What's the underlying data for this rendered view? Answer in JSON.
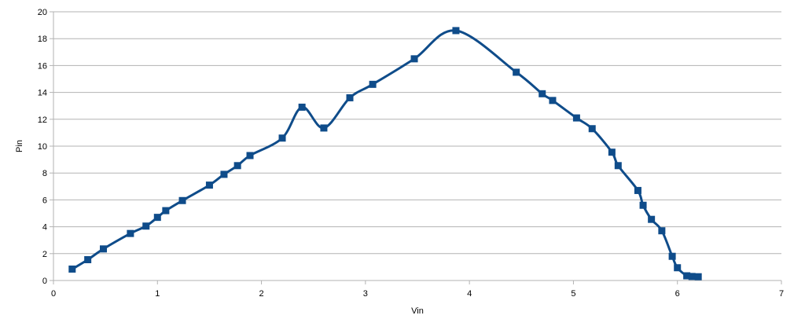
{
  "chart_data": {
    "type": "scatter",
    "xlabel": "Vin",
    "ylabel": "Pin",
    "xlim": [
      0,
      7
    ],
    "ylim": [
      0,
      20
    ],
    "xticks": [
      "0",
      "1",
      "2",
      "3",
      "4",
      "5",
      "6",
      "7"
    ],
    "yticks": [
      "0",
      "2",
      "4",
      "6",
      "8",
      "10",
      "12",
      "14",
      "16",
      "18",
      "20"
    ],
    "grid": true,
    "legend": "none",
    "series": [
      {
        "color": "#0f4c8a",
        "marker": "square",
        "line": "smooth",
        "points": [
          {
            "x": 0.18,
            "y": 0.85
          },
          {
            "x": 0.33,
            "y": 1.55
          },
          {
            "x": 0.48,
            "y": 2.35
          },
          {
            "x": 0.74,
            "y": 3.5
          },
          {
            "x": 0.89,
            "y": 4.05
          },
          {
            "x": 1.0,
            "y": 4.7
          },
          {
            "x": 1.08,
            "y": 5.2
          },
          {
            "x": 1.24,
            "y": 5.95
          },
          {
            "x": 1.5,
            "y": 7.1
          },
          {
            "x": 1.64,
            "y": 7.9
          },
          {
            "x": 1.77,
            "y": 8.55
          },
          {
            "x": 1.89,
            "y": 9.3
          },
          {
            "x": 2.2,
            "y": 10.6
          },
          {
            "x": 2.39,
            "y": 12.9
          },
          {
            "x": 2.6,
            "y": 11.35
          },
          {
            "x": 2.85,
            "y": 13.6
          },
          {
            "x": 3.07,
            "y": 14.6
          },
          {
            "x": 3.47,
            "y": 16.5
          },
          {
            "x": 3.87,
            "y": 18.6
          },
          {
            "x": 4.45,
            "y": 15.5
          },
          {
            "x": 4.7,
            "y": 13.9
          },
          {
            "x": 4.8,
            "y": 13.4
          },
          {
            "x": 5.03,
            "y": 12.1
          },
          {
            "x": 5.18,
            "y": 11.3
          },
          {
            "x": 5.37,
            "y": 9.55
          },
          {
            "x": 5.43,
            "y": 8.55
          },
          {
            "x": 5.62,
            "y": 6.7
          },
          {
            "x": 5.67,
            "y": 5.6
          },
          {
            "x": 5.75,
            "y": 4.55
          },
          {
            "x": 5.85,
            "y": 3.7
          },
          {
            "x": 5.95,
            "y": 1.8
          },
          {
            "x": 6.0,
            "y": 0.95
          },
          {
            "x": 6.09,
            "y": 0.35
          },
          {
            "x": 6.14,
            "y": 0.3
          },
          {
            "x": 6.2,
            "y": 0.28
          }
        ]
      }
    ]
  }
}
